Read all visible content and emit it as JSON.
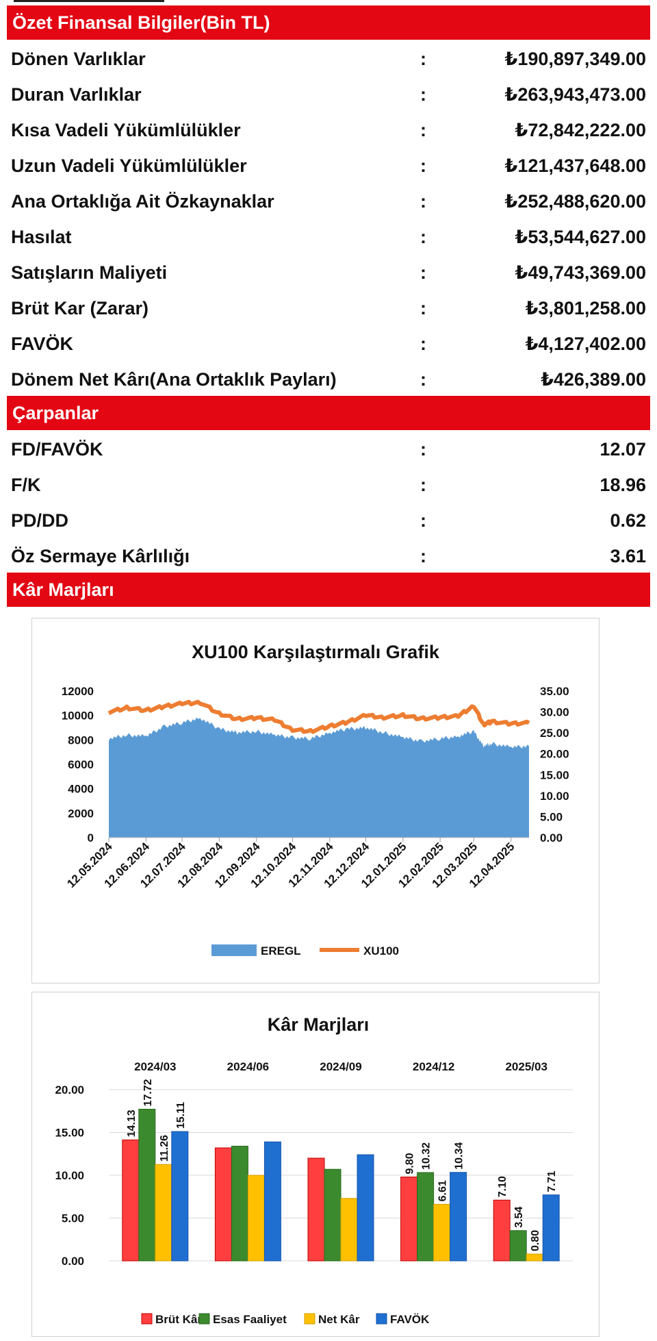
{
  "financials": {
    "header": "Özet Finansal Bilgiler(Bin TL)",
    "separator": ":",
    "rows": [
      {
        "label": "Dönen Varlıklar",
        "value": "₺190,897,349.00"
      },
      {
        "label": "Duran Varlıklar",
        "value": "₺263,943,473.00"
      },
      {
        "label": "Kısa Vadeli Yükümlülükler",
        "value": "₺72,842,222.00"
      },
      {
        "label": "Uzun Vadeli Yükümlülükler",
        "value": "₺121,437,648.00"
      },
      {
        "label": "Ana Ortaklığa Ait Özkaynaklar",
        "value": "₺252,488,620.00"
      },
      {
        "label": "Hasılat",
        "value": "₺53,544,627.00"
      },
      {
        "label": "Satışların Maliyeti",
        "value": "₺49,743,369.00"
      },
      {
        "label": "Brüt Kar (Zarar)",
        "value": "₺3,801,258.00"
      },
      {
        "label": "FAVÖK",
        "value": "₺4,127,402.00"
      },
      {
        "label": "Dönem Net Kârı(Ana Ortaklık Payları)",
        "value": "₺426,389.00"
      }
    ]
  },
  "multiples": {
    "header": "Çarpanlar",
    "rows": [
      {
        "label": "FD/FAVÖK",
        "value": "12.07"
      },
      {
        "label": "F/K",
        "value": "18.96"
      },
      {
        "label": "PD/DD",
        "value": "0.62"
      },
      {
        "label": "Öz Sermaye Kârlılığı",
        "value": "3.61"
      }
    ]
  },
  "margins_section": {
    "header": "Kâr Marjları"
  },
  "colors": {
    "header_red": "#e30613",
    "eregl_blue": "#5b9bd5",
    "xu100_orange": "#ed7d31",
    "brut_red": "#ff3f3f",
    "esas_green": "#3c8a2e",
    "net_yellow": "#ffc000",
    "favok_blue": "#1f6fd1"
  },
  "chart_data": [
    {
      "type": "area",
      "title": "XU100 Karşılaştırmalı  Grafik",
      "left_axis": {
        "ticks": [
          "12000",
          "10000",
          "8000",
          "6000",
          "4000",
          "2000",
          "0"
        ],
        "ylim": [
          0,
          12000
        ]
      },
      "right_axis": {
        "ticks": [
          "35.00",
          "30.00",
          "25.00",
          "20.00",
          "15.00",
          "10.00",
          "5.00",
          "0.00"
        ],
        "ylim": [
          0,
          35
        ]
      },
      "x_ticks": [
        "12.05.2024",
        "12.06.2024",
        "12.07.2024",
        "12.08.2024",
        "12.09.2024",
        "12.10.2024",
        "12.11.2024",
        "12.12.2024",
        "12.01.2025",
        "12.02.2025",
        "12.03.2025",
        "12.04.2025"
      ],
      "series": [
        {
          "name": "EREGL",
          "kind": "area",
          "axis": "left",
          "x": [
            "12.05.2024",
            "27.05.2024",
            "12.06.2024",
            "27.06.2024",
            "12.07.2024",
            "27.07.2024",
            "12.08.2024",
            "27.08.2024",
            "12.09.2024",
            "27.09.2024",
            "12.10.2024",
            "27.10.2024",
            "12.11.2024",
            "27.11.2024",
            "12.12.2024",
            "27.12.2024",
            "12.01.2025",
            "27.01.2025",
            "12.02.2025",
            "27.02.2025",
            "12.03.2025",
            "20.03.2025",
            "27.03.2025",
            "12.04.2025",
            "27.04.2025"
          ],
          "values": [
            8100,
            8400,
            8300,
            9100,
            9400,
            9800,
            8900,
            8600,
            8700,
            8400,
            8200,
            8100,
            8600,
            8900,
            9000,
            8600,
            8200,
            7900,
            8100,
            8300,
            8700,
            7500,
            7700,
            7400,
            7500
          ]
        },
        {
          "name": "XU100",
          "kind": "line",
          "axis": "right",
          "x": [
            "12.05.2024",
            "27.05.2024",
            "12.06.2024",
            "27.06.2024",
            "12.07.2024",
            "27.07.2024",
            "12.08.2024",
            "27.08.2024",
            "12.09.2024",
            "27.09.2024",
            "12.10.2024",
            "27.10.2024",
            "12.11.2024",
            "27.11.2024",
            "12.12.2024",
            "27.12.2024",
            "12.01.2025",
            "27.01.2025",
            "12.02.2025",
            "27.02.2025",
            "12.03.2025",
            "20.03.2025",
            "27.03.2025",
            "12.04.2025",
            "27.04.2025"
          ],
          "values": [
            30.0,
            31.0,
            30.4,
            31.3,
            32.0,
            32.3,
            29.6,
            28.3,
            28.6,
            28.1,
            25.8,
            25.4,
            26.6,
            27.6,
            29.2,
            28.7,
            29.2,
            28.4,
            28.7,
            29.0,
            31.5,
            27.0,
            27.7,
            27.2,
            27.4
          ]
        }
      ],
      "legend": [
        "EREGL",
        "XU100"
      ],
      "legend_position": "bottom"
    },
    {
      "type": "bar",
      "title": "Kâr Marjları",
      "categories": [
        "2024/03",
        "2024/06",
        "2024/09",
        "2024/12",
        "2025/03"
      ],
      "ylim": [
        0,
        20
      ],
      "y_ticks": [
        "20.00",
        "15.00",
        "10.00",
        "5.00",
        "0.00"
      ],
      "series": [
        {
          "name": "Brüt Kâr",
          "values": [
            14.13,
            13.2,
            12.0,
            9.8,
            7.1
          ],
          "labels": [
            "14.13",
            "",
            "",
            "9.80",
            "7.10"
          ]
        },
        {
          "name": "Esas Faaliyet",
          "values": [
            17.72,
            13.4,
            10.7,
            10.32,
            3.54
          ],
          "labels": [
            "17.72",
            "",
            "",
            "10.32",
            "3.54"
          ]
        },
        {
          "name": "Net Kâr",
          "values": [
            11.26,
            10.0,
            7.3,
            6.61,
            0.8
          ],
          "labels": [
            "11.26",
            "",
            "",
            "6.61",
            "0.80"
          ]
        },
        {
          "name": "FAVÖK",
          "values": [
            15.11,
            13.9,
            12.4,
            10.34,
            7.71
          ],
          "labels": [
            "15.11",
            "",
            "",
            "10.34",
            "7.71"
          ]
        }
      ],
      "legend_position": "bottom"
    }
  ]
}
